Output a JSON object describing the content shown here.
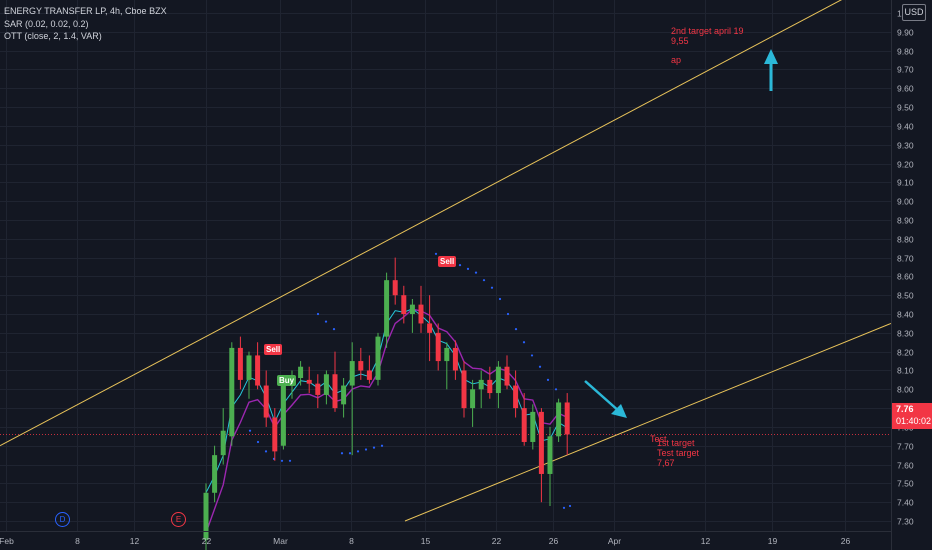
{
  "legend": {
    "symbol": "ENERGY TRANSFER LP, 4h, Cboe BZX",
    "sar": "SAR (0.02, 0.02, 0.2)",
    "ott": "OTT (close, 2, 1.4, VAR)"
  },
  "currency": "USD",
  "last_price": {
    "price": "7.76",
    "countdown": "01:40:02"
  },
  "annotations": {
    "second_target": "2nd target april 19",
    "second_target_value": "9,55",
    "ap": "ap",
    "test": "Test",
    "first_target": "1st target",
    "test_target": "Test target",
    "first_target_value": "7,67"
  },
  "signals": {
    "sell_1": "Sell",
    "buy_1": "Buy",
    "sell_2": "Sell"
  },
  "event_markers": {
    "d": "D",
    "e": "E"
  },
  "colors": {
    "background": "#131722",
    "up": "#26a69a",
    "green_candle": "#4caf50",
    "red_candle": "#f23645",
    "channel": "#e8c35a",
    "ott": "#9c27b0",
    "sar": "#2962ff",
    "arrow": "#2bb8d8"
  },
  "chart_data": {
    "type": "candlestick",
    "ylim": [
      7.22,
      10.08
    ],
    "y_ticks": [
      "7.30",
      "7.40",
      "7.50",
      "7.60",
      "7.70",
      "7.80",
      "7.90",
      "8.00",
      "8.10",
      "8.20",
      "8.30",
      "8.40",
      "8.50",
      "8.60",
      "8.70",
      "8.80",
      "8.90",
      "9.00",
      "9.10",
      "9.20",
      "9.30",
      "9.40",
      "9.50",
      "9.60",
      "9.70",
      "9.80",
      "9.90",
      "10.00"
    ],
    "x_ticks": [
      "Feb",
      "8",
      "12",
      "22",
      "Mar",
      "8",
      "15",
      "22",
      "26",
      "Apr",
      "12",
      "19",
      "26"
    ],
    "current_price": 7.76,
    "candles": [
      {
        "o": 7.2,
        "h": 7.5,
        "l": 7.1,
        "c": 7.45
      },
      {
        "o": 7.45,
        "h": 7.7,
        "l": 7.4,
        "c": 7.65
      },
      {
        "o": 7.65,
        "h": 7.9,
        "l": 7.6,
        "c": 7.78
      },
      {
        "o": 7.75,
        "h": 8.25,
        "l": 7.7,
        "c": 8.22
      },
      {
        "o": 8.22,
        "h": 8.28,
        "l": 8.0,
        "c": 8.05
      },
      {
        "o": 8.05,
        "h": 8.2,
        "l": 7.95,
        "c": 8.18
      },
      {
        "o": 8.18,
        "h": 8.25,
        "l": 8.0,
        "c": 8.02
      },
      {
        "o": 8.02,
        "h": 8.1,
        "l": 7.8,
        "c": 7.85
      },
      {
        "o": 7.85,
        "h": 7.9,
        "l": 7.62,
        "c": 7.67
      },
      {
        "o": 7.7,
        "h": 8.05,
        "l": 7.68,
        "c": 8.04
      },
      {
        "o": 8.04,
        "h": 8.1,
        "l": 7.95,
        "c": 8.06
      },
      {
        "o": 8.06,
        "h": 8.15,
        "l": 8.02,
        "c": 8.12
      },
      {
        "o": 8.05,
        "h": 8.12,
        "l": 7.98,
        "c": 8.03
      },
      {
        "o": 8.03,
        "h": 8.08,
        "l": 7.9,
        "c": 7.97
      },
      {
        "o": 7.97,
        "h": 8.1,
        "l": 7.92,
        "c": 8.08
      },
      {
        "o": 8.08,
        "h": 8.2,
        "l": 7.88,
        "c": 7.9
      },
      {
        "o": 7.92,
        "h": 8.06,
        "l": 7.85,
        "c": 8.02
      },
      {
        "o": 8.02,
        "h": 8.25,
        "l": 7.65,
        "c": 8.15
      },
      {
        "o": 8.15,
        "h": 8.22,
        "l": 8.05,
        "c": 8.1
      },
      {
        "o": 8.1,
        "h": 8.18,
        "l": 8.03,
        "c": 8.05
      },
      {
        "o": 8.05,
        "h": 8.3,
        "l": 8.02,
        "c": 8.28
      },
      {
        "o": 8.28,
        "h": 8.62,
        "l": 8.22,
        "c": 8.58
      },
      {
        "o": 8.58,
        "h": 8.7,
        "l": 8.45,
        "c": 8.5
      },
      {
        "o": 8.5,
        "h": 8.55,
        "l": 8.35,
        "c": 8.4
      },
      {
        "o": 8.4,
        "h": 8.48,
        "l": 8.3,
        "c": 8.45
      },
      {
        "o": 8.45,
        "h": 8.55,
        "l": 8.3,
        "c": 8.35
      },
      {
        "o": 8.35,
        "h": 8.5,
        "l": 8.15,
        "c": 8.3
      },
      {
        "o": 8.3,
        "h": 8.35,
        "l": 8.1,
        "c": 8.15
      },
      {
        "o": 8.15,
        "h": 8.25,
        "l": 8.0,
        "c": 8.22
      },
      {
        "o": 8.22,
        "h": 8.26,
        "l": 8.05,
        "c": 8.1
      },
      {
        "o": 8.1,
        "h": 8.15,
        "l": 7.85,
        "c": 7.9
      },
      {
        "o": 7.9,
        "h": 8.05,
        "l": 7.8,
        "c": 8.0
      },
      {
        "o": 8.0,
        "h": 8.1,
        "l": 7.9,
        "c": 8.05
      },
      {
        "o": 8.05,
        "h": 8.12,
        "l": 7.95,
        "c": 7.98
      },
      {
        "o": 7.98,
        "h": 8.15,
        "l": 7.9,
        "c": 8.12
      },
      {
        "o": 8.12,
        "h": 8.18,
        "l": 8.0,
        "c": 8.02
      },
      {
        "o": 8.02,
        "h": 8.1,
        "l": 7.85,
        "c": 7.9
      },
      {
        "o": 7.9,
        "h": 7.98,
        "l": 7.7,
        "c": 7.72
      },
      {
        "o": 7.72,
        "h": 7.92,
        "l": 7.68,
        "c": 7.88
      },
      {
        "o": 7.88,
        "h": 7.9,
        "l": 7.4,
        "c": 7.55
      },
      {
        "o": 7.55,
        "h": 7.8,
        "l": 7.38,
        "c": 7.75
      },
      {
        "o": 7.75,
        "h": 7.95,
        "l": 7.72,
        "c": 7.93
      },
      {
        "o": 7.93,
        "h": 7.98,
        "l": 7.65,
        "c": 7.76
      }
    ]
  }
}
